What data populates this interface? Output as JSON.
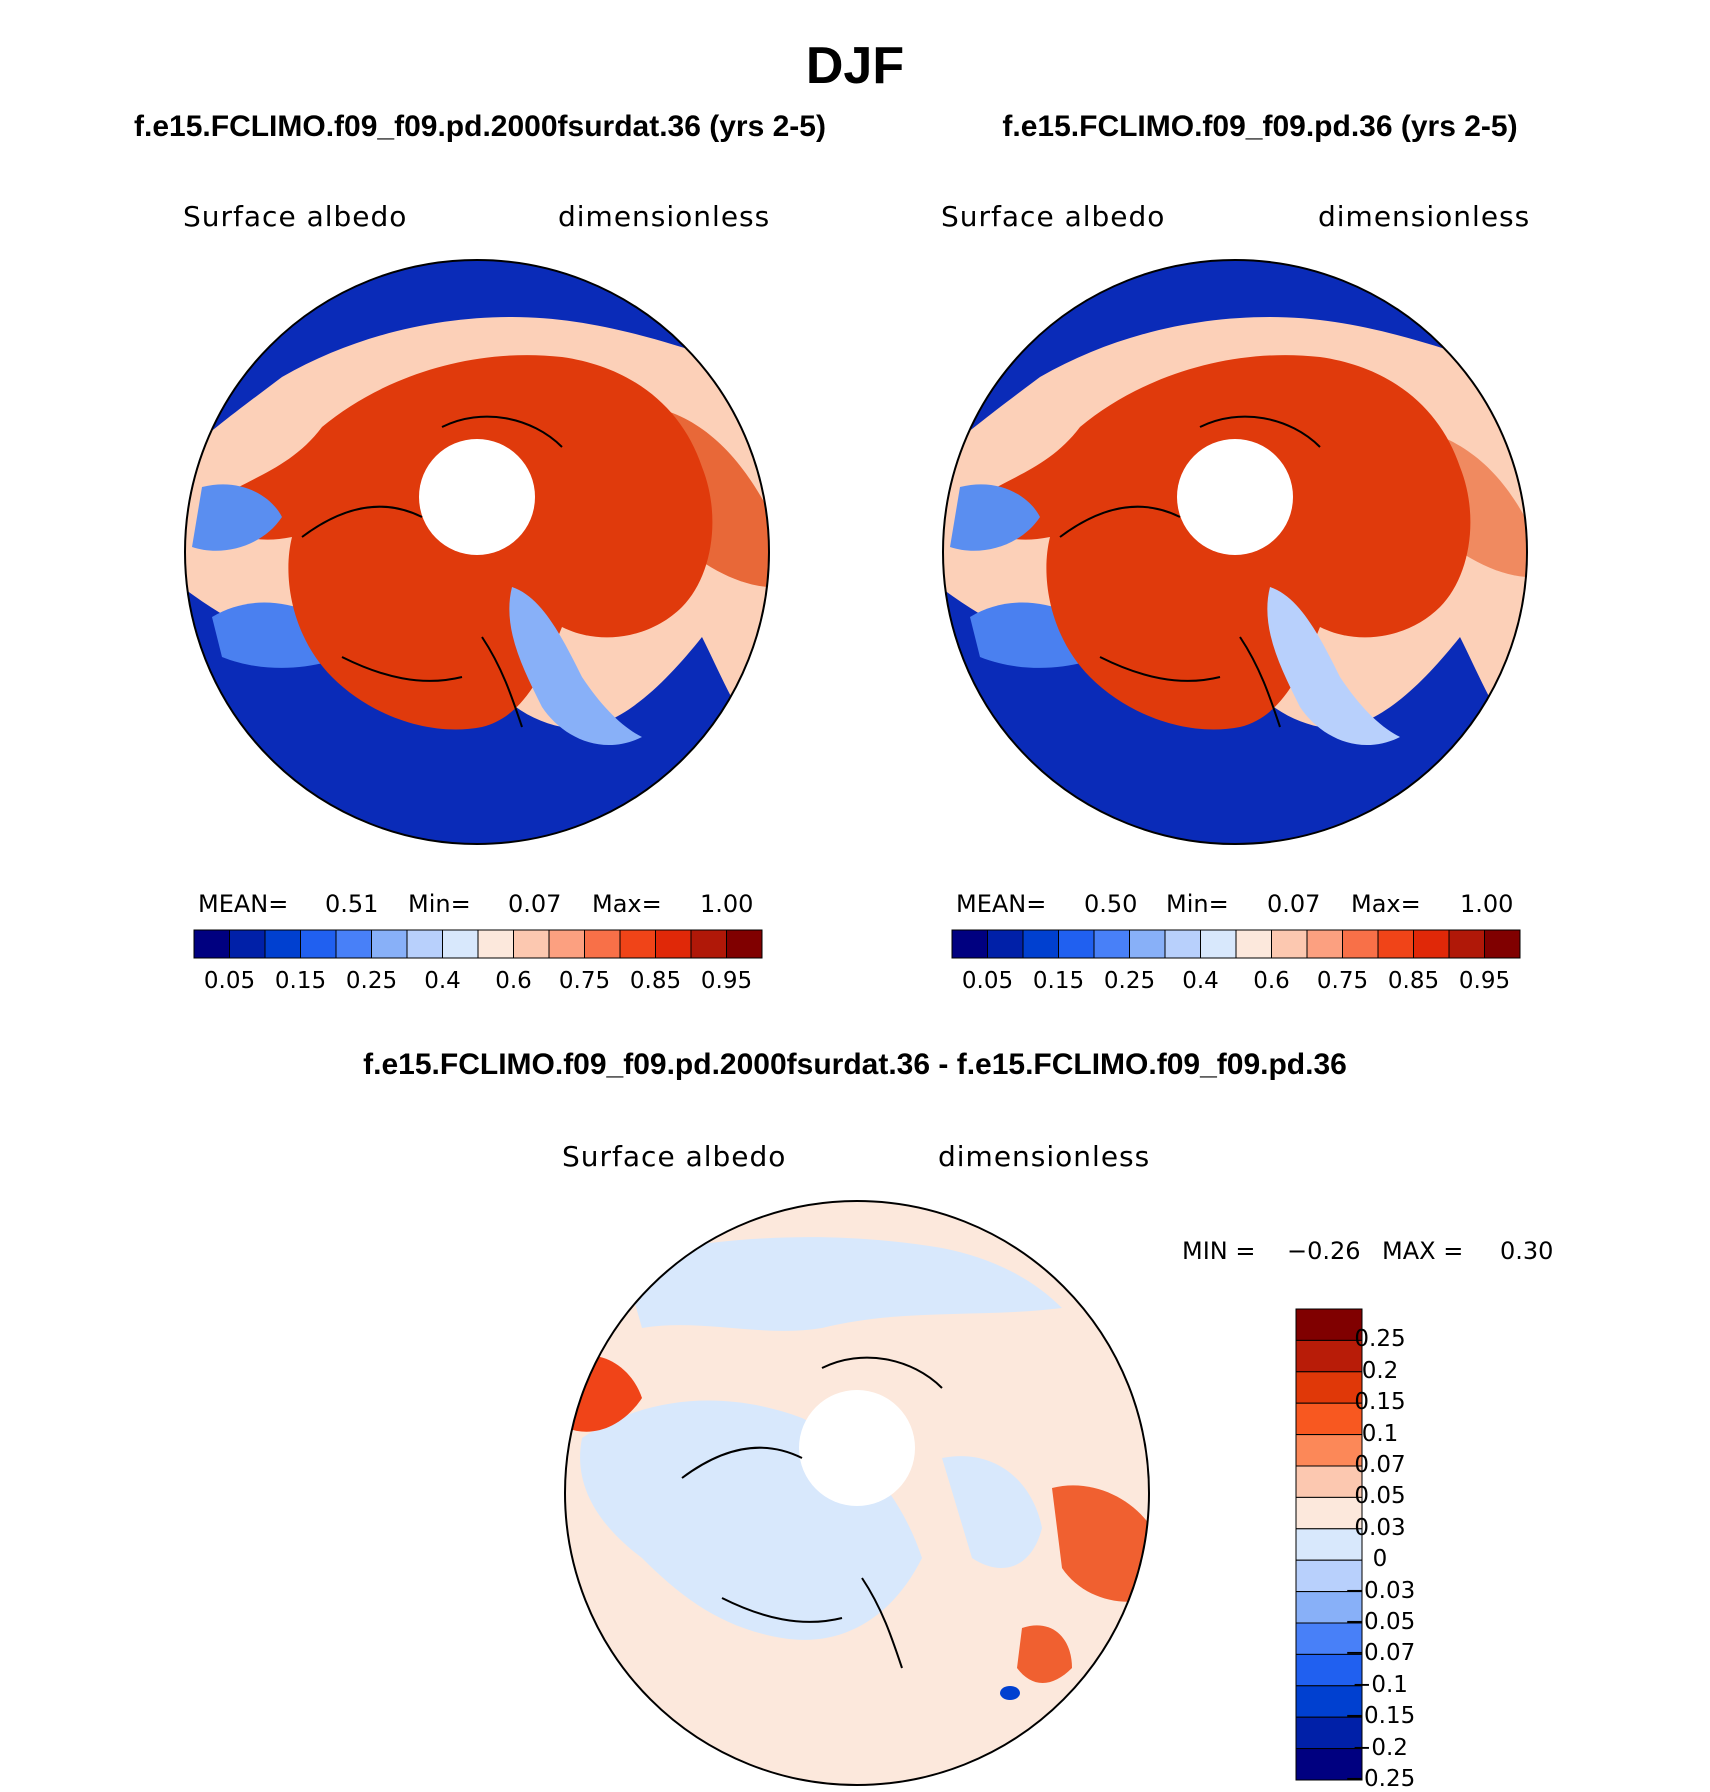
{
  "title": "DJF",
  "panel1": {
    "header": "f.e15.FCLIMO.f09_f09.pd.2000fsurdat.36 (yrs 2-5)",
    "variable": "Surface albedo",
    "units": "dimensionless",
    "mean_label": "MEAN=",
    "mean_value": "0.51",
    "min_label": "Min=",
    "min_value": "0.07",
    "max_label": "Max=",
    "max_value": "1.00"
  },
  "panel2": {
    "header": "f.e15.FCLIMO.f09_f09.pd.36 (yrs 2-5)",
    "variable": "Surface albedo",
    "units": "dimensionless",
    "mean_label": "MEAN=",
    "mean_value": "0.50",
    "min_label": "Min=",
    "min_value": "0.07",
    "max_label": "Max=",
    "max_value": "1.00"
  },
  "panel3": {
    "header": "f.e15.FCLIMO.f09_f09.pd.2000fsurdat.36 - f.e15.FCLIMO.f09_f09.pd.36",
    "variable": "Surface albedo",
    "units": "dimensionless",
    "min_label": "MIN =",
    "min_value": "−0.26",
    "max_label": "MAX =",
    "max_value": "0.30"
  },
  "colorbar_abs": {
    "colors": [
      "#000080",
      "#0020a8",
      "#0040d0",
      "#2060f0",
      "#4880f8",
      "#88b0f8",
      "#b8d0fc",
      "#d8e8fc",
      "#fce8dc",
      "#fcc8b0",
      "#fca080",
      "#f87048",
      "#f04418",
      "#e02808",
      "#b01808",
      "#800000"
    ],
    "ticks": [
      "0.05",
      "0.15",
      "0.25",
      "0.4",
      "0.6",
      "0.75",
      "0.85",
      "0.95"
    ]
  },
  "colorbar_diff": {
    "colors": [
      "#800000",
      "#b81c08",
      "#e03808",
      "#f85820",
      "#fc8858",
      "#fcc8b0",
      "#fce8dc",
      "#d8e8fc",
      "#b8d0fc",
      "#88b0f8",
      "#4880f8",
      "#2060f0",
      "#0040d0",
      "#0020a8",
      "#000080"
    ],
    "ticks": [
      "0.25",
      "0.2",
      "0.15",
      "0.1",
      "0.07",
      "0.05",
      "0.03",
      "0",
      "−0.03",
      "−0.05",
      "−0.07",
      "−0.1",
      "−0.15",
      "−0.2",
      "−0.25"
    ]
  }
}
